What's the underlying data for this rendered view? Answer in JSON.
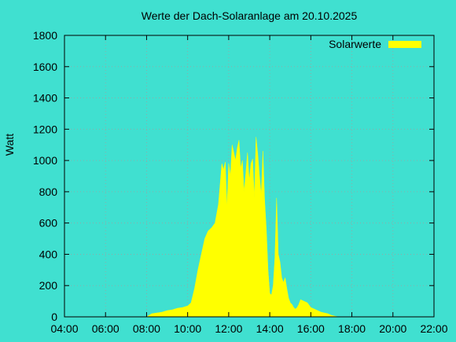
{
  "colors": {
    "background": "#40e0d0",
    "series": "#ffff00",
    "grid": "#a0a0a0",
    "axis": "#000000"
  },
  "chart_data": {
    "type": "area",
    "title": "Werte der Dach-Solaranlage am 20.10.2025",
    "xlabel": "",
    "ylabel": "Watt",
    "xlim": [
      "04:00",
      "22:00"
    ],
    "ylim": [
      0,
      1800
    ],
    "x_ticks": [
      "04:00",
      "06:00",
      "08:00",
      "10:00",
      "12:00",
      "14:00",
      "16:00",
      "18:00",
      "20:00",
      "22:00"
    ],
    "y_ticks": [
      0,
      200,
      400,
      600,
      800,
      1000,
      1200,
      1400,
      1600,
      1800
    ],
    "grid": true,
    "legend": {
      "position": "top-right",
      "entries": [
        "Solarwerte"
      ]
    },
    "series": [
      {
        "name": "Solarwerte",
        "x": [
          "08:00",
          "08:15",
          "08:30",
          "08:45",
          "09:00",
          "09:15",
          "09:30",
          "09:45",
          "10:00",
          "10:10",
          "10:20",
          "10:30",
          "10:40",
          "10:50",
          "11:00",
          "11:10",
          "11:20",
          "11:30",
          "11:40",
          "11:45",
          "11:50",
          "11:55",
          "12:00",
          "12:05",
          "12:10",
          "12:15",
          "12:20",
          "12:25",
          "12:30",
          "12:35",
          "12:40",
          "12:45",
          "12:50",
          "12:55",
          "13:00",
          "13:05",
          "13:10",
          "13:15",
          "13:20",
          "13:25",
          "13:30",
          "13:35",
          "13:40",
          "13:45",
          "13:50",
          "13:55",
          "14:00",
          "14:05",
          "14:10",
          "14:15",
          "14:20",
          "14:25",
          "14:30",
          "14:35",
          "14:40",
          "14:45",
          "14:50",
          "14:55",
          "15:00",
          "15:05",
          "15:10",
          "15:15",
          "15:20",
          "15:25",
          "15:30",
          "15:40",
          "15:50",
          "16:00",
          "16:10",
          "16:20",
          "16:30",
          "16:40",
          "16:50",
          "17:00",
          "17:10",
          "17:20",
          "17:30",
          "17:40",
          "17:50",
          "18:00"
        ],
        "values": [
          0,
          20,
          25,
          30,
          40,
          45,
          55,
          60,
          70,
          90,
          180,
          300,
          400,
          500,
          550,
          570,
          600,
          720,
          980,
          940,
          990,
          700,
          980,
          900,
          1100,
          1050,
          1000,
          1080,
          1130,
          950,
          1000,
          800,
          920,
          1050,
          870,
          980,
          1010,
          760,
          1150,
          1040,
          900,
          780,
          1060,
          750,
          560,
          300,
          150,
          140,
          200,
          380,
          760,
          400,
          350,
          250,
          220,
          250,
          180,
          120,
          90,
          80,
          60,
          50,
          60,
          80,
          110,
          100,
          90,
          60,
          50,
          40,
          30,
          25,
          20,
          10,
          5,
          0,
          0,
          0,
          0,
          0
        ]
      }
    ]
  }
}
